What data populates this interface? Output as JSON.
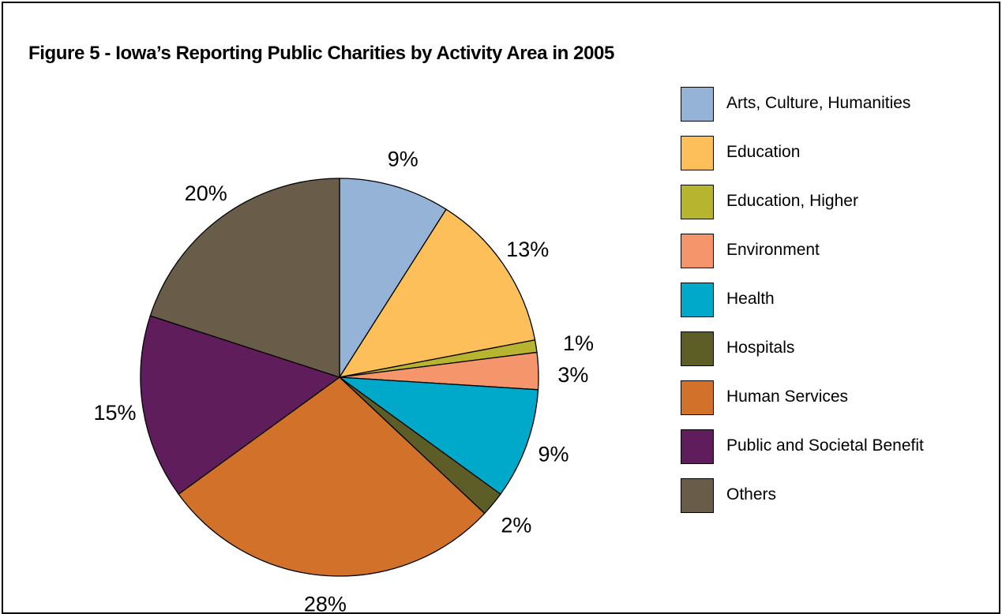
{
  "title": "Figure 5 - Iowa’s Reporting Public Charities by Activity Area in 2005",
  "chart_data": {
    "type": "pie",
    "title": "Figure 5 - Iowa’s Reporting Public Charities by Activity Area in 2005",
    "legend_position": "right",
    "start_angle_deg": 0,
    "direction": "clockwise from top",
    "slices": [
      {
        "label": "Arts, Culture, Humanities",
        "value": 9,
        "display": "9%",
        "color": "#95b3d7"
      },
      {
        "label": "Education",
        "value": 13,
        "display": "13%",
        "color": "#fdbf5a"
      },
      {
        "label": "Education, Higher",
        "value": 1,
        "display": "1%",
        "color": "#b7b42f"
      },
      {
        "label": "Environment",
        "value": 3,
        "display": "3%",
        "color": "#f5956c"
      },
      {
        "label": "Health",
        "value": 9,
        "display": "9%",
        "color": "#00a9c9"
      },
      {
        "label": "Hospitals",
        "value": 2,
        "display": "2%",
        "color": "#5d5e27"
      },
      {
        "label": "Human Services",
        "value": 28,
        "display": "28%",
        "color": "#d27129"
      },
      {
        "label": "Public and Societal Benefit",
        "value": 15,
        "display": "15%",
        "color": "#5f1d5c"
      },
      {
        "label": "Others",
        "value": 20,
        "display": "20%",
        "color": "#695d4a"
      }
    ]
  }
}
